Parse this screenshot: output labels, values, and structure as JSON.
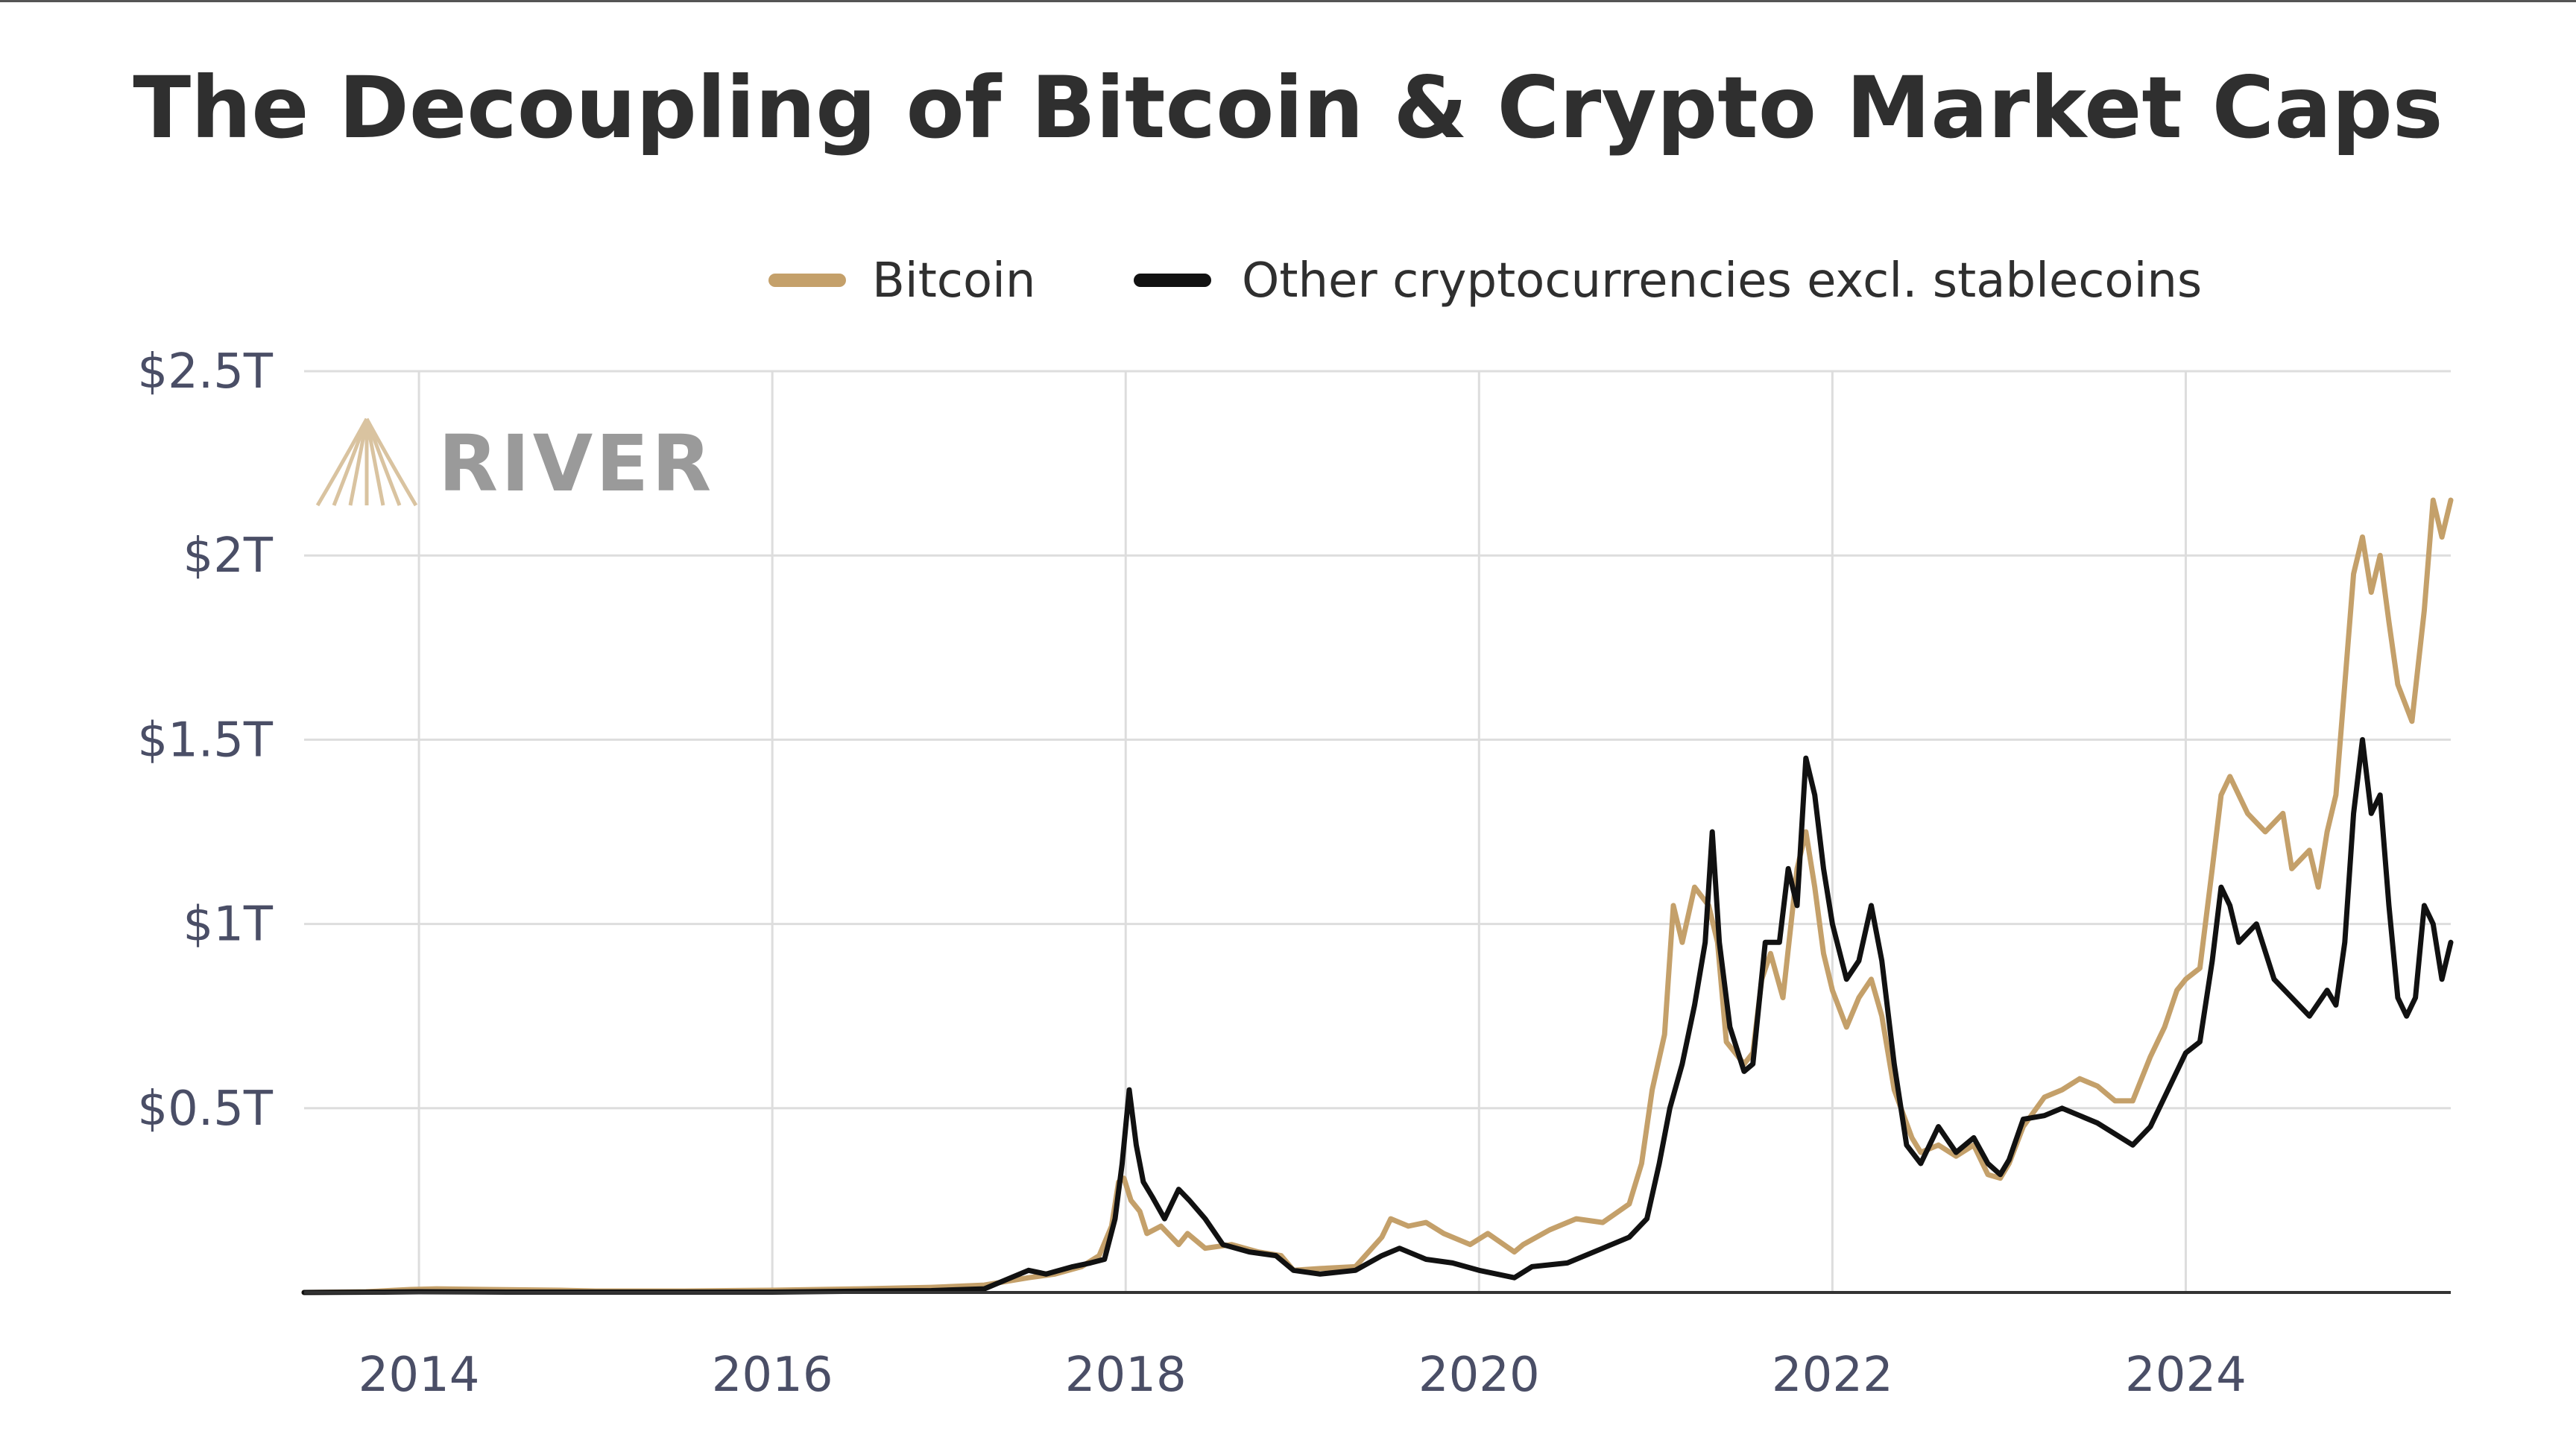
{
  "chart_data": {
    "type": "line",
    "title": "The Decoupling of Bitcoin & Crypto Market Caps",
    "xlabel": "",
    "ylabel": "",
    "x_range": [
      2013.35,
      2025.5
    ],
    "ylim": [
      0,
      2.5
    ],
    "y_ticks": [
      {
        "value": 0.5,
        "label": "$0.5T"
      },
      {
        "value": 1.0,
        "label": "$1T"
      },
      {
        "value": 1.5,
        "label": "$1.5T"
      },
      {
        "value": 2.0,
        "label": "$2T"
      },
      {
        "value": 2.5,
        "label": "$2.5T"
      }
    ],
    "x_ticks": [
      {
        "value": 2014,
        "label": "2014"
      },
      {
        "value": 2016,
        "label": "2016"
      },
      {
        "value": 2018,
        "label": "2018"
      },
      {
        "value": 2020,
        "label": "2020"
      },
      {
        "value": 2022,
        "label": "2022"
      },
      {
        "value": 2024,
        "label": "2024"
      }
    ],
    "grid": true,
    "legend_position": "top-center",
    "series": [
      {
        "name": "Bitcoin",
        "color": "#c4a06a",
        "points": [
          [
            2013.35,
            0.0
          ],
          [
            2013.7,
            0.002
          ],
          [
            2013.95,
            0.008
          ],
          [
            2014.1,
            0.01
          ],
          [
            2014.4,
            0.008
          ],
          [
            2014.8,
            0.006
          ],
          [
            2015.0,
            0.004
          ],
          [
            2015.5,
            0.004
          ],
          [
            2016.0,
            0.006
          ],
          [
            2016.5,
            0.01
          ],
          [
            2016.9,
            0.014
          ],
          [
            2017.2,
            0.02
          ],
          [
            2017.45,
            0.04
          ],
          [
            2017.6,
            0.05
          ],
          [
            2017.75,
            0.07
          ],
          [
            2017.85,
            0.1
          ],
          [
            2017.92,
            0.18
          ],
          [
            2017.96,
            0.3
          ],
          [
            2017.99,
            0.31
          ],
          [
            2018.03,
            0.25
          ],
          [
            2018.08,
            0.22
          ],
          [
            2018.12,
            0.16
          ],
          [
            2018.2,
            0.18
          ],
          [
            2018.3,
            0.13
          ],
          [
            2018.35,
            0.16
          ],
          [
            2018.45,
            0.12
          ],
          [
            2018.6,
            0.13
          ],
          [
            2018.75,
            0.11
          ],
          [
            2018.88,
            0.1
          ],
          [
            2018.95,
            0.06
          ],
          [
            2019.1,
            0.065
          ],
          [
            2019.3,
            0.07
          ],
          [
            2019.45,
            0.15
          ],
          [
            2019.5,
            0.2
          ],
          [
            2019.6,
            0.18
          ],
          [
            2019.7,
            0.19
          ],
          [
            2019.8,
            0.16
          ],
          [
            2019.95,
            0.13
          ],
          [
            2020.05,
            0.16
          ],
          [
            2020.2,
            0.11
          ],
          [
            2020.25,
            0.13
          ],
          [
            2020.4,
            0.17
          ],
          [
            2020.55,
            0.2
          ],
          [
            2020.7,
            0.19
          ],
          [
            2020.85,
            0.24
          ],
          [
            2020.92,
            0.35
          ],
          [
            2020.98,
            0.55
          ],
          [
            2021.05,
            0.7
          ],
          [
            2021.1,
            1.05
          ],
          [
            2021.15,
            0.95
          ],
          [
            2021.22,
            1.1
          ],
          [
            2021.3,
            1.05
          ],
          [
            2021.35,
            0.95
          ],
          [
            2021.4,
            0.68
          ],
          [
            2021.5,
            0.62
          ],
          [
            2021.55,
            0.65
          ],
          [
            2021.6,
            0.85
          ],
          [
            2021.65,
            0.92
          ],
          [
            2021.72,
            0.8
          ],
          [
            2021.8,
            1.15
          ],
          [
            2021.85,
            1.25
          ],
          [
            2021.9,
            1.1
          ],
          [
            2021.95,
            0.92
          ],
          [
            2022.0,
            0.82
          ],
          [
            2022.08,
            0.72
          ],
          [
            2022.15,
            0.8
          ],
          [
            2022.22,
            0.85
          ],
          [
            2022.28,
            0.75
          ],
          [
            2022.35,
            0.55
          ],
          [
            2022.45,
            0.42
          ],
          [
            2022.5,
            0.38
          ],
          [
            2022.6,
            0.4
          ],
          [
            2022.7,
            0.37
          ],
          [
            2022.8,
            0.4
          ],
          [
            2022.88,
            0.32
          ],
          [
            2022.95,
            0.31
          ],
          [
            2023.0,
            0.35
          ],
          [
            2023.08,
            0.45
          ],
          [
            2023.2,
            0.53
          ],
          [
            2023.3,
            0.55
          ],
          [
            2023.4,
            0.58
          ],
          [
            2023.5,
            0.56
          ],
          [
            2023.6,
            0.52
          ],
          [
            2023.7,
            0.52
          ],
          [
            2023.8,
            0.64
          ],
          [
            2023.88,
            0.72
          ],
          [
            2023.95,
            0.82
          ],
          [
            2024.0,
            0.85
          ],
          [
            2024.08,
            0.88
          ],
          [
            2024.15,
            1.15
          ],
          [
            2024.2,
            1.35
          ],
          [
            2024.25,
            1.4
          ],
          [
            2024.35,
            1.3
          ],
          [
            2024.45,
            1.25
          ],
          [
            2024.55,
            1.3
          ],
          [
            2024.6,
            1.15
          ],
          [
            2024.7,
            1.2
          ],
          [
            2024.75,
            1.1
          ],
          [
            2024.8,
            1.25
          ],
          [
            2024.85,
            1.35
          ],
          [
            2024.9,
            1.65
          ],
          [
            2024.95,
            1.95
          ],
          [
            2025.0,
            2.05
          ],
          [
            2025.05,
            1.9
          ],
          [
            2025.1,
            2.0
          ],
          [
            2025.15,
            1.82
          ],
          [
            2025.2,
            1.65
          ],
          [
            2025.28,
            1.55
          ],
          [
            2025.35,
            1.85
          ],
          [
            2025.4,
            2.15
          ],
          [
            2025.45,
            2.05
          ],
          [
            2025.5,
            2.15
          ]
        ]
      },
      {
        "name": "Other cryptocurrencies excl. stablecoins",
        "color": "#111111",
        "points": [
          [
            2013.35,
            0.0
          ],
          [
            2013.8,
            0.001
          ],
          [
            2014.0,
            0.002
          ],
          [
            2014.5,
            0.001
          ],
          [
            2015.0,
            0.001
          ],
          [
            2015.5,
            0.001
          ],
          [
            2016.0,
            0.001
          ],
          [
            2016.6,
            0.004
          ],
          [
            2016.9,
            0.005
          ],
          [
            2017.2,
            0.01
          ],
          [
            2017.45,
            0.06
          ],
          [
            2017.55,
            0.05
          ],
          [
            2017.7,
            0.07
          ],
          [
            2017.8,
            0.08
          ],
          [
            2017.88,
            0.09
          ],
          [
            2017.94,
            0.2
          ],
          [
            2017.98,
            0.35
          ],
          [
            2018.02,
            0.55
          ],
          [
            2018.06,
            0.4
          ],
          [
            2018.1,
            0.3
          ],
          [
            2018.15,
            0.26
          ],
          [
            2018.22,
            0.2
          ],
          [
            2018.3,
            0.28
          ],
          [
            2018.36,
            0.25
          ],
          [
            2018.45,
            0.2
          ],
          [
            2018.55,
            0.13
          ],
          [
            2018.7,
            0.11
          ],
          [
            2018.85,
            0.1
          ],
          [
            2018.95,
            0.06
          ],
          [
            2019.1,
            0.05
          ],
          [
            2019.3,
            0.06
          ],
          [
            2019.45,
            0.1
          ],
          [
            2019.55,
            0.12
          ],
          [
            2019.7,
            0.09
          ],
          [
            2019.85,
            0.08
          ],
          [
            2020.0,
            0.06
          ],
          [
            2020.2,
            0.04
          ],
          [
            2020.3,
            0.07
          ],
          [
            2020.5,
            0.08
          ],
          [
            2020.7,
            0.12
          ],
          [
            2020.85,
            0.15
          ],
          [
            2020.95,
            0.2
          ],
          [
            2021.02,
            0.35
          ],
          [
            2021.08,
            0.5
          ],
          [
            2021.15,
            0.62
          ],
          [
            2021.22,
            0.78
          ],
          [
            2021.28,
            0.95
          ],
          [
            2021.32,
            1.25
          ],
          [
            2021.36,
            0.95
          ],
          [
            2021.42,
            0.72
          ],
          [
            2021.5,
            0.6
          ],
          [
            2021.55,
            0.62
          ],
          [
            2021.62,
            0.95
          ],
          [
            2021.7,
            0.95
          ],
          [
            2021.75,
            1.15
          ],
          [
            2021.8,
            1.05
          ],
          [
            2021.85,
            1.45
          ],
          [
            2021.9,
            1.35
          ],
          [
            2021.95,
            1.15
          ],
          [
            2022.0,
            1.0
          ],
          [
            2022.08,
            0.85
          ],
          [
            2022.15,
            0.9
          ],
          [
            2022.22,
            1.05
          ],
          [
            2022.28,
            0.9
          ],
          [
            2022.35,
            0.62
          ],
          [
            2022.42,
            0.4
          ],
          [
            2022.5,
            0.35
          ],
          [
            2022.6,
            0.45
          ],
          [
            2022.7,
            0.38
          ],
          [
            2022.8,
            0.42
          ],
          [
            2022.88,
            0.35
          ],
          [
            2022.95,
            0.32
          ],
          [
            2023.0,
            0.36
          ],
          [
            2023.08,
            0.47
          ],
          [
            2023.2,
            0.48
          ],
          [
            2023.3,
            0.5
          ],
          [
            2023.4,
            0.48
          ],
          [
            2023.5,
            0.46
          ],
          [
            2023.6,
            0.43
          ],
          [
            2023.7,
            0.4
          ],
          [
            2023.8,
            0.45
          ],
          [
            2023.9,
            0.55
          ],
          [
            2024.0,
            0.65
          ],
          [
            2024.08,
            0.68
          ],
          [
            2024.15,
            0.9
          ],
          [
            2024.2,
            1.1
          ],
          [
            2024.25,
            1.05
          ],
          [
            2024.3,
            0.95
          ],
          [
            2024.4,
            1.0
          ],
          [
            2024.5,
            0.85
          ],
          [
            2024.6,
            0.8
          ],
          [
            2024.7,
            0.75
          ],
          [
            2024.8,
            0.82
          ],
          [
            2024.85,
            0.78
          ],
          [
            2024.9,
            0.95
          ],
          [
            2024.95,
            1.3
          ],
          [
            2025.0,
            1.5
          ],
          [
            2025.05,
            1.3
          ],
          [
            2025.1,
            1.35
          ],
          [
            2025.15,
            1.05
          ],
          [
            2025.2,
            0.8
          ],
          [
            2025.25,
            0.75
          ],
          [
            2025.3,
            0.8
          ],
          [
            2025.35,
            1.05
          ],
          [
            2025.4,
            1.0
          ],
          [
            2025.45,
            0.85
          ],
          [
            2025.5,
            0.95
          ]
        ]
      }
    ]
  },
  "legend": [
    {
      "label": "Bitcoin",
      "color": "#c4a06a"
    },
    {
      "label": "Other cryptocurrencies excl. stablecoins",
      "color": "#111111"
    }
  ],
  "logo": {
    "text": "RIVER",
    "icon": "river-mountain-icon",
    "icon_color": "#d9c3a0"
  },
  "colors": {
    "title": "#2f2f2f",
    "grid": "#dddddd",
    "axis": "#333333",
    "tick_label": "#4a4e66"
  }
}
